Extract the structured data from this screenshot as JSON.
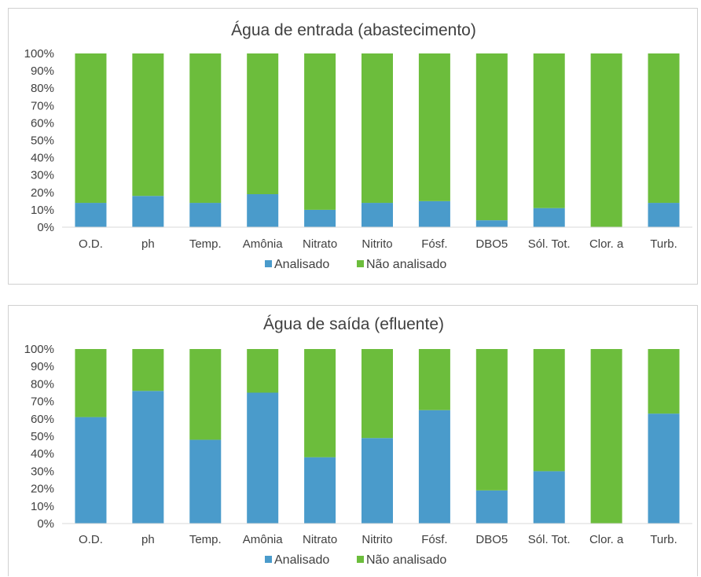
{
  "colors": {
    "analisado": "#4a9bcb",
    "nao_analisado": "#6cbd3c",
    "axis": "#d9d9d9",
    "text": "#404040"
  },
  "chart_data": [
    {
      "type": "bar",
      "stacked": true,
      "title": "Água de entrada (abastecimento)",
      "categories": [
        "O.D.",
        "ph",
        "Temp.",
        "Amônia",
        "Nitrato",
        "Nitrito",
        "Fósf.",
        "DBO5",
        "Sól. Tot.",
        "Clor. a",
        "Turb."
      ],
      "series": [
        {
          "name": "Analisado",
          "values": [
            14,
            18,
            14,
            19,
            10,
            14,
            15,
            4,
            11,
            0,
            14
          ]
        },
        {
          "name": "Não analisado",
          "values": [
            86,
            82,
            86,
            81,
            90,
            86,
            85,
            96,
            89,
            100,
            86
          ]
        }
      ],
      "ylim": [
        0,
        100
      ],
      "yticks": [
        "0%",
        "10%",
        "20%",
        "30%",
        "40%",
        "50%",
        "60%",
        "70%",
        "80%",
        "90%",
        "100%"
      ],
      "legend": "bottom",
      "grid": false
    },
    {
      "type": "bar",
      "stacked": true,
      "title": "Água de saída (efluente)",
      "categories": [
        "O.D.",
        "ph",
        "Temp.",
        "Amônia",
        "Nitrato",
        "Nitrito",
        "Fósf.",
        "DBO5",
        "Sól. Tot.",
        "Clor. a",
        "Turb."
      ],
      "series": [
        {
          "name": "Analisado",
          "values": [
            61,
            76,
            48,
            75,
            38,
            49,
            65,
            19,
            30,
            0,
            63
          ]
        },
        {
          "name": "Não analisado",
          "values": [
            39,
            24,
            52,
            25,
            62,
            51,
            35,
            81,
            70,
            100,
            37
          ]
        }
      ],
      "ylim": [
        0,
        100
      ],
      "yticks": [
        "0%",
        "10%",
        "20%",
        "30%",
        "40%",
        "50%",
        "60%",
        "70%",
        "80%",
        "90%",
        "100%"
      ],
      "legend": "bottom",
      "grid": false
    }
  ]
}
